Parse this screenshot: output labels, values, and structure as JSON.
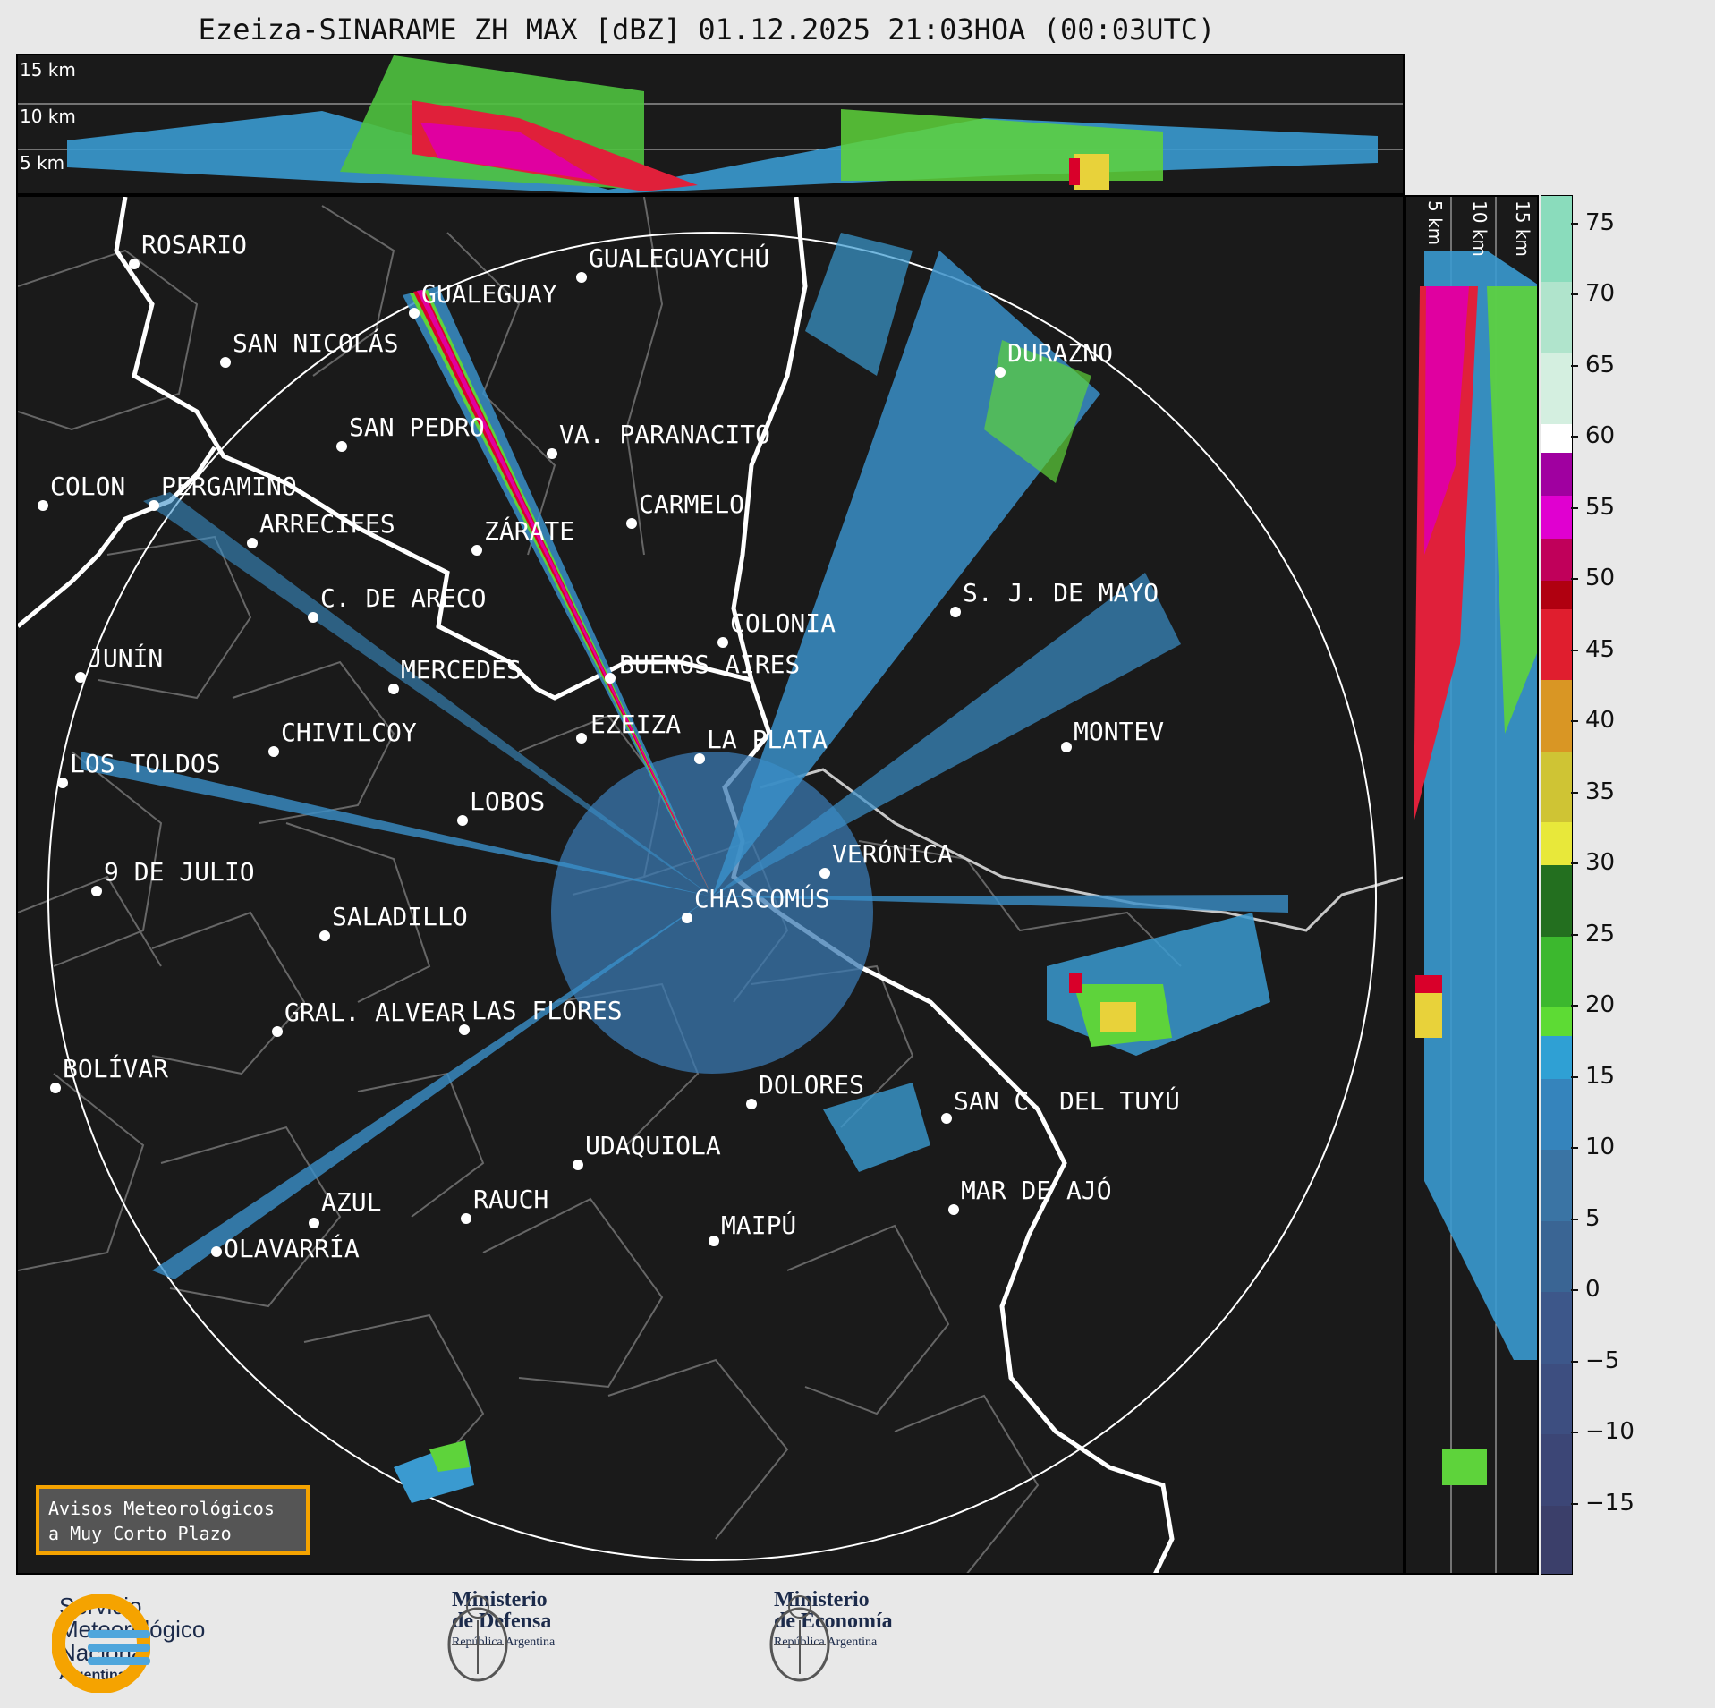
{
  "title": "Ezeiza-SINARAME ZH MAX [dBZ] 01.12.2025 21:03HOA (00:03UTC)",
  "altitude_labels_top": [
    "15 km",
    "10 km",
    "5 km"
  ],
  "altitude_labels_side": [
    "5 km",
    "10 km",
    "15 km"
  ],
  "cities": [
    {
      "name": "ROSARIO"
    },
    {
      "name": "GUALEGUAYCHÚ"
    },
    {
      "name": "GUALEGUAY"
    },
    {
      "name": "SAN NICOLÁS"
    },
    {
      "name": "DURAZNO"
    },
    {
      "name": "SAN PEDRO"
    },
    {
      "name": "VA. PARANACITO"
    },
    {
      "name": "COLON"
    },
    {
      "name": "PERGAMINO"
    },
    {
      "name": "CARMELO"
    },
    {
      "name": "ARRECIFES"
    },
    {
      "name": "ZÁRATE"
    },
    {
      "name": "S. J. DE MAYO"
    },
    {
      "name": "C. DE ARECO"
    },
    {
      "name": "COLONIA"
    },
    {
      "name": "JUNÍN"
    },
    {
      "name": "BUENOS AIRES"
    },
    {
      "name": "MERCEDES"
    },
    {
      "name": "MONTEV"
    },
    {
      "name": "EZEIZA"
    },
    {
      "name": "CHIVILCOY"
    },
    {
      "name": "LA PLATA"
    },
    {
      "name": "LOS TOLDOS"
    },
    {
      "name": "LOBOS"
    },
    {
      "name": "VERÓNICA"
    },
    {
      "name": "9 DE JULIO"
    },
    {
      "name": "CHASCOMÚS"
    },
    {
      "name": "SALADILLO"
    },
    {
      "name": "GRAL. ALVEAR"
    },
    {
      "name": "LAS FLORES"
    },
    {
      "name": "BOLÍVAR"
    },
    {
      "name": "DOLORES"
    },
    {
      "name": "SAN C. DEL TUYÚ"
    },
    {
      "name": "UDAQUIOLA"
    },
    {
      "name": "MAR DE AJÓ"
    },
    {
      "name": "RAUCH"
    },
    {
      "name": "AZUL"
    },
    {
      "name": "OLAVARRÍA"
    },
    {
      "name": "MAIPÚ"
    }
  ],
  "colorbar": {
    "ticks": [
      "75",
      "70",
      "65",
      "60",
      "55",
      "50",
      "45",
      "40",
      "35",
      "30",
      "25",
      "20",
      "15",
      "10",
      "5",
      "0",
      "−5",
      "−10",
      "−15"
    ],
    "range_dbz": [
      -20,
      77
    ]
  },
  "alert_box": {
    "line1": "Avisos Meteorológicos",
    "line2": "a Muy Corto Plazo"
  },
  "logos": {
    "smn": {
      "line1": "Servicio",
      "line2": "Meteorológico",
      "line3": "Nacional",
      "line4": "Argentina"
    },
    "defensa": {
      "line1": "Ministerio",
      "line2": "de Defensa",
      "line3": "República Argentina"
    },
    "economia": {
      "line1": "Ministerio",
      "line2": "de Economía",
      "line3": "República Argentina"
    }
  },
  "colors": {
    "background": "#1a1a1a",
    "accent": "#f5a300",
    "radar_low": "#3a8fc8",
    "radar_mid": "#5ed33b",
    "radar_high": "#d9002a"
  }
}
